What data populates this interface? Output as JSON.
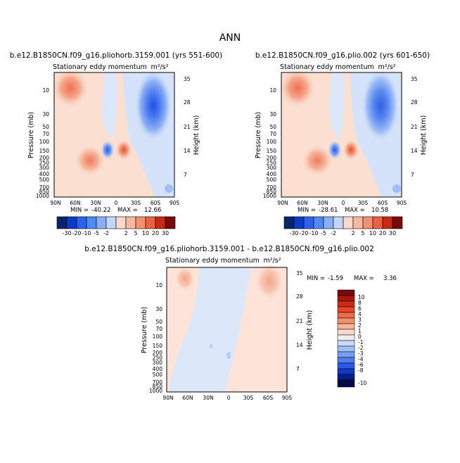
{
  "page_title": "ANN",
  "colorbar_top": {
    "labels": [
      "-30",
      "-20",
      "-10",
      "-5",
      "-2",
      "2",
      "5",
      "10",
      "20",
      "30"
    ]
  },
  "colorbar_diff": {
    "labels": [
      "10",
      "8",
      "6",
      "4",
      "3",
      "2",
      "1",
      "0",
      "-1",
      "-2",
      "-3",
      "-4",
      "-6",
      "-8",
      "-10"
    ]
  },
  "chart_data": [
    {
      "type": "heatmap",
      "title": "b.e12.B1850CN.f09_g16.pliohorb.3159.001 (yrs 551-600)",
      "subtitle": "Stationary eddy momentum",
      "units": "m²/s²",
      "xlabel": "",
      "ylabel": "Pressure (mb)",
      "ylabel_right": "Height (km)",
      "x_ticks": [
        "90N",
        "60N",
        "30N",
        "0",
        "30S",
        "60S",
        "90S"
      ],
      "y_ticks": [
        "10",
        "30",
        "50",
        "70",
        "100",
        "150",
        "200",
        "250",
        "300",
        "400",
        "500",
        "700",
        "850",
        "1000"
      ],
      "y_right_ticks": [
        "35",
        "28",
        "21",
        "14",
        "7"
      ],
      "ylim": [
        1000,
        5
      ],
      "y_scale": "log",
      "min": "-40.22",
      "max": "12.66",
      "features": [
        {
          "lat": 65,
          "p": 8,
          "value": 10,
          "sign": "positive"
        },
        {
          "lat": -58,
          "p": 8,
          "value": -40,
          "sign": "negative"
        },
        {
          "lat": 30,
          "p": 200,
          "value": 10,
          "sign": "positive"
        },
        {
          "lat": 12,
          "p": 150,
          "value": -20,
          "sign": "negative"
        },
        {
          "lat": -10,
          "p": 150,
          "value": 12,
          "sign": "positive"
        }
      ]
    },
    {
      "type": "heatmap",
      "title": "b.e12.B1850CN.f09_g16.plio.002 (yrs 601-650)",
      "subtitle": "Stationary eddy momentum",
      "units": "m²/s²",
      "xlabel": "",
      "ylabel": "Pressure (mb)",
      "ylabel_right": "Height (km)",
      "x_ticks": [
        "90N",
        "60N",
        "30N",
        "0",
        "30S",
        "60S",
        "90S"
      ],
      "y_ticks": [
        "10",
        "30",
        "50",
        "70",
        "100",
        "150",
        "200",
        "250",
        "300",
        "400",
        "500",
        "700",
        "850",
        "1000"
      ],
      "y_right_ticks": [
        "35",
        "28",
        "21",
        "14",
        "7"
      ],
      "ylim": [
        1000,
        5
      ],
      "y_scale": "log",
      "min": "-28.61",
      "max": "10.58",
      "features": [
        {
          "lat": 65,
          "p": 8,
          "value": 8,
          "sign": "positive"
        },
        {
          "lat": -58,
          "p": 8,
          "value": -28,
          "sign": "negative"
        },
        {
          "lat": 30,
          "p": 200,
          "value": 8,
          "sign": "positive"
        },
        {
          "lat": 12,
          "p": 150,
          "value": -15,
          "sign": "negative"
        },
        {
          "lat": -10,
          "p": 150,
          "value": 10,
          "sign": "positive"
        }
      ]
    },
    {
      "type": "heatmap",
      "title": "b.e12.B1850CN.f09_g16.pliohorb.3159.001 - b.e12.B1850CN.f09_g16.plio.002",
      "subtitle": "Stationary eddy momentum",
      "units": "m²/s²",
      "xlabel": "",
      "ylabel": "Pressure (mb)",
      "ylabel_right": "Height (km)",
      "x_ticks": [
        "90N",
        "60N",
        "30N",
        "0",
        "30S",
        "60S",
        "90S"
      ],
      "y_ticks": [
        "10",
        "30",
        "50",
        "70",
        "100",
        "150",
        "200",
        "250",
        "300",
        "400",
        "500",
        "700",
        "850",
        "1000"
      ],
      "y_right_ticks": [
        "35",
        "28",
        "21",
        "14",
        "7"
      ],
      "ylim": [
        1000,
        5
      ],
      "y_scale": "log",
      "min": "-1.59",
      "max": "3.36",
      "features": [
        {
          "lat": 62,
          "p": 8,
          "value": 3,
          "sign": "positive"
        },
        {
          "lat": -50,
          "p": 8,
          "value": 2,
          "sign": "positive"
        },
        {
          "lat": 12,
          "p": 150,
          "value": -1,
          "sign": "negative"
        }
      ]
    }
  ]
}
